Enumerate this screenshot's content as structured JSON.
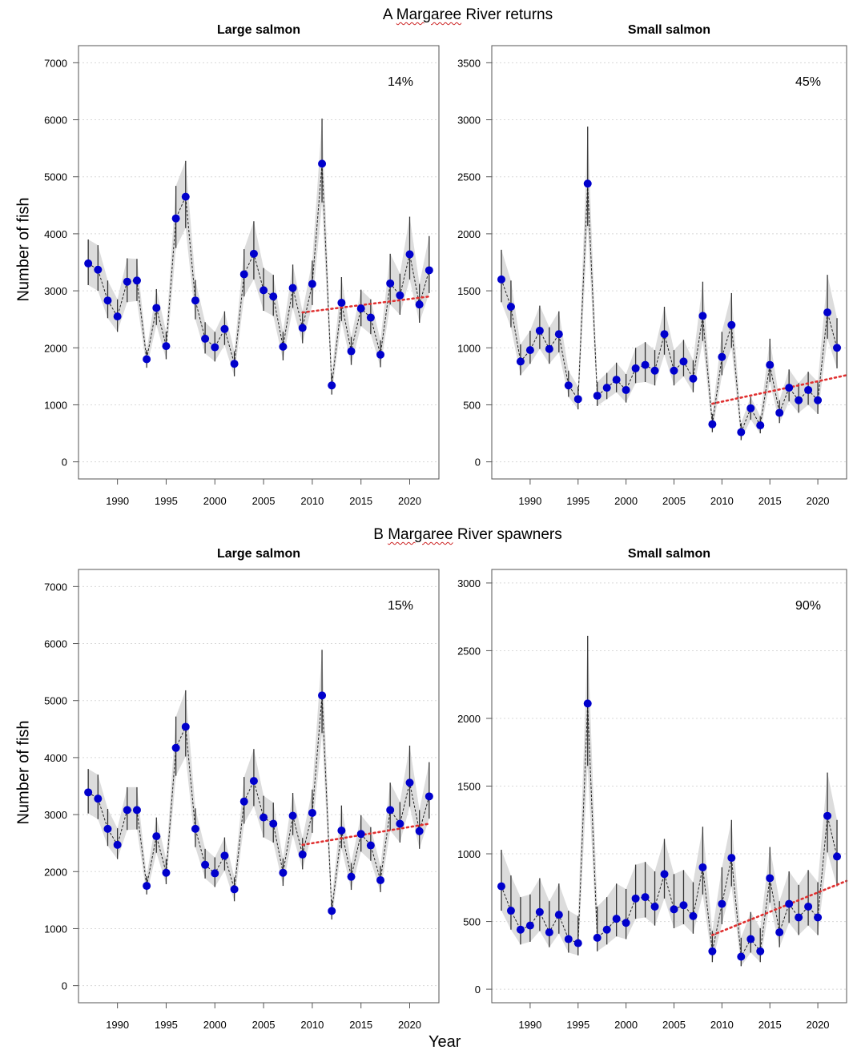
{
  "figure": {
    "sections": [
      {
        "letter": "A",
        "river": "Margaree",
        "rest": "River returns"
      },
      {
        "letter": "B",
        "river": "Margaree",
        "rest": "River spawners"
      }
    ],
    "ylabel": "Number of fish",
    "xlabel": "Year"
  },
  "chart_data": [
    {
      "type": "line",
      "section": "A Margaree River returns",
      "title": "Large salmon",
      "annotation": "14%",
      "ylabel": "Number of fish",
      "xlabel": "Year",
      "xlim": [
        1986,
        2023
      ],
      "ylim": [
        -300,
        7300
      ],
      "xticks": [
        1990,
        1995,
        2000,
        2005,
        2010,
        2015,
        2020
      ],
      "yticks": [
        0,
        1000,
        2000,
        3000,
        4000,
        5000,
        6000,
        7000
      ],
      "grid": "horizontal dotted",
      "x": [
        1987,
        1988,
        1989,
        1990,
        1991,
        1992,
        1993,
        1994,
        1995,
        1996,
        1997,
        1998,
        1999,
        2000,
        2001,
        2002,
        2003,
        2004,
        2005,
        2006,
        2007,
        2008,
        2009,
        2010,
        2011,
        2012,
        2013,
        2014,
        2015,
        2016,
        2017,
        2018,
        2019,
        2020,
        2021,
        2022
      ],
      "y": [
        3480,
        3370,
        2830,
        2550,
        3160,
        3180,
        1800,
        2700,
        2030,
        4270,
        4650,
        2830,
        2160,
        2010,
        2330,
        1720,
        3290,
        3650,
        3010,
        2900,
        2020,
        3050,
        2350,
        3120,
        5230,
        1340,
        2790,
        1940,
        2690,
        2530,
        1880,
        3130,
        2920,
        3640,
        2760,
        3360
      ],
      "lower": [
        3100,
        3000,
        2520,
        2280,
        2800,
        2820,
        1650,
        2400,
        1800,
        3750,
        4100,
        2500,
        1900,
        1760,
        2050,
        1500,
        2900,
        3200,
        2650,
        2560,
        1780,
        2700,
        2080,
        2750,
        4550,
        1180,
        2470,
        1700,
        2380,
        2240,
        1660,
        2760,
        2580,
        3200,
        2440,
        2960
      ],
      "upper": [
        3900,
        3800,
        3180,
        2850,
        3570,
        3560,
        1960,
        3030,
        2280,
        4840,
        5280,
        3190,
        2450,
        2280,
        2640,
        1940,
        3730,
        4220,
        3400,
        3280,
        2280,
        3460,
        2640,
        3530,
        6020,
        1530,
        3240,
        2190,
        3020,
        2850,
        2130,
        3650,
        3300,
        4300,
        3120,
        3960
      ],
      "trend": {
        "x": [
          2009,
          2022
        ],
        "y": [
          2620,
          2900
        ],
        "color": "#e03030"
      },
      "point_color": "#0000cc"
    },
    {
      "type": "line",
      "section": "A Margaree River returns",
      "title": "Small salmon",
      "annotation": "45%",
      "ylabel": "",
      "xlabel": "Year",
      "xlim": [
        1986,
        2023
      ],
      "ylim": [
        -150,
        3650
      ],
      "xticks": [
        1990,
        1995,
        2000,
        2005,
        2010,
        2015,
        2020
      ],
      "yticks": [
        0,
        500,
        1000,
        1500,
        2000,
        2500,
        3000,
        3500
      ],
      "grid": "horizontal dotted",
      "x": [
        1987,
        1988,
        1989,
        1990,
        1991,
        1992,
        1993,
        1994,
        1995,
        1996,
        1997,
        1998,
        1999,
        2000,
        2001,
        2002,
        2003,
        2004,
        2005,
        2006,
        2007,
        2008,
        2009,
        2010,
        2011,
        2012,
        2013,
        2014,
        2015,
        2016,
        2017,
        2018,
        2019,
        2020,
        2021,
        2022
      ],
      "y": [
        1600,
        1360,
        880,
        980,
        1150,
        990,
        1120,
        670,
        550,
        2440,
        580,
        650,
        720,
        630,
        820,
        850,
        800,
        1120,
        800,
        880,
        730,
        1280,
        330,
        920,
        1200,
        260,
        470,
        320,
        850,
        430,
        650,
        540,
        630,
        540,
        1310,
        1000
      ],
      "lower": [
        1400,
        1180,
        760,
        860,
        990,
        860,
        960,
        570,
        460,
        2070,
        490,
        550,
        610,
        520,
        690,
        700,
        670,
        940,
        670,
        750,
        610,
        1060,
        260,
        760,
        1000,
        190,
        370,
        250,
        700,
        340,
        530,
        430,
        500,
        420,
        1080,
        820
      ],
      "upper": [
        1860,
        1590,
        1030,
        1150,
        1370,
        1180,
        1320,
        800,
        660,
        2940,
        700,
        780,
        870,
        770,
        1000,
        1050,
        980,
        1360,
        980,
        1070,
        890,
        1580,
        420,
        1140,
        1480,
        340,
        570,
        400,
        1080,
        540,
        810,
        690,
        790,
        700,
        1640,
        1260
      ],
      "trend": {
        "x": [
          2009,
          2023
        ],
        "y": [
          510,
          760
        ],
        "color": "#e03030"
      },
      "point_color": "#0000cc"
    },
    {
      "type": "line",
      "section": "B Margaree River spawners",
      "title": "Large salmon",
      "annotation": "15%",
      "ylabel": "Number of fish",
      "xlabel": "Year",
      "xlim": [
        1986,
        2023
      ],
      "ylim": [
        -300,
        7300
      ],
      "xticks": [
        1990,
        1995,
        2000,
        2005,
        2010,
        2015,
        2020
      ],
      "yticks": [
        0,
        1000,
        2000,
        3000,
        4000,
        5000,
        6000,
        7000
      ],
      "grid": "horizontal dotted",
      "x": [
        1987,
        1988,
        1989,
        1990,
        1991,
        1992,
        1993,
        1994,
        1995,
        1996,
        1997,
        1998,
        1999,
        2000,
        2001,
        2002,
        2003,
        2004,
        2005,
        2006,
        2007,
        2008,
        2009,
        2010,
        2011,
        2012,
        2013,
        2014,
        2015,
        2016,
        2017,
        2018,
        2019,
        2020,
        2021,
        2022
      ],
      "y": [
        3390,
        3280,
        2750,
        2470,
        3080,
        3080,
        1750,
        2620,
        1980,
        4170,
        4540,
        2750,
        2120,
        1970,
        2280,
        1690,
        3230,
        3590,
        2950,
        2840,
        1980,
        2980,
        2300,
        3030,
        5090,
        1310,
        2720,
        1910,
        2660,
        2460,
        1850,
        3080,
        2840,
        3560,
        2710,
        3320
      ],
      "lower": [
        3020,
        2920,
        2450,
        2220,
        2730,
        2740,
        1600,
        2330,
        1780,
        3680,
        4020,
        2430,
        1880,
        1730,
        2020,
        1480,
        2840,
        3150,
        2600,
        2510,
        1750,
        2640,
        2040,
        2680,
        4430,
        1160,
        2410,
        1680,
        2350,
        2190,
        1640,
        2720,
        2510,
        3140,
        2400,
        2930
      ],
      "upper": [
        3800,
        3700,
        3100,
        2760,
        3480,
        3480,
        1920,
        2950,
        2220,
        4720,
        5180,
        3110,
        2400,
        2250,
        2600,
        1900,
        3660,
        4150,
        3330,
        3210,
        2230,
        3380,
        2590,
        3440,
        5890,
        1500,
        3160,
        2150,
        2990,
        2780,
        2100,
        3560,
        3220,
        4210,
        3080,
        3920
      ],
      "trend": {
        "x": [
          2009,
          2022
        ],
        "y": [
          2470,
          2840
        ],
        "color": "#e03030"
      },
      "point_color": "#0000cc"
    },
    {
      "type": "line",
      "section": "B Margaree River spawners",
      "title": "Small salmon",
      "annotation": "90%",
      "ylabel": "",
      "xlabel": "Year",
      "xlim": [
        1986,
        2023
      ],
      "ylim": [
        -100,
        3100
      ],
      "xticks": [
        1990,
        1995,
        2000,
        2005,
        2010,
        2015,
        2020
      ],
      "yticks": [
        0,
        500,
        1000,
        1500,
        2000,
        2500,
        3000
      ],
      "grid": "horizontal dotted",
      "x": [
        1987,
        1988,
        1989,
        1990,
        1991,
        1992,
        1993,
        1994,
        1995,
        1996,
        1997,
        1998,
        1999,
        2000,
        2001,
        2002,
        2003,
        2004,
        2005,
        2006,
        2007,
        2008,
        2009,
        2010,
        2011,
        2012,
        2013,
        2014,
        2015,
        2016,
        2017,
        2018,
        2019,
        2020,
        2021,
        2022
      ],
      "y": [
        760,
        580,
        440,
        470,
        570,
        420,
        550,
        370,
        340,
        2110,
        380,
        440,
        520,
        490,
        670,
        680,
        610,
        850,
        590,
        620,
        540,
        900,
        280,
        630,
        970,
        240,
        370,
        280,
        820,
        420,
        630,
        530,
        610,
        530,
        1280,
        980
      ],
      "lower": [
        580,
        440,
        330,
        350,
        430,
        310,
        410,
        270,
        250,
        1650,
        280,
        330,
        390,
        370,
        520,
        530,
        470,
        670,
        450,
        480,
        410,
        700,
        200,
        480,
        760,
        170,
        270,
        200,
        640,
        310,
        490,
        400,
        470,
        400,
        1010,
        760
      ],
      "upper": [
        1030,
        840,
        680,
        700,
        820,
        650,
        780,
        580,
        540,
        2610,
        610,
        680,
        780,
        740,
        920,
        940,
        870,
        1110,
        850,
        880,
        790,
        1200,
        430,
        900,
        1250,
        380,
        570,
        450,
        1050,
        650,
        870,
        770,
        880,
        790,
        1600,
        1250
      ],
      "trend": {
        "x": [
          2009,
          2023
        ],
        "y": [
          400,
          800
        ],
        "color": "#e03030"
      },
      "point_color": "#0000cc"
    }
  ]
}
